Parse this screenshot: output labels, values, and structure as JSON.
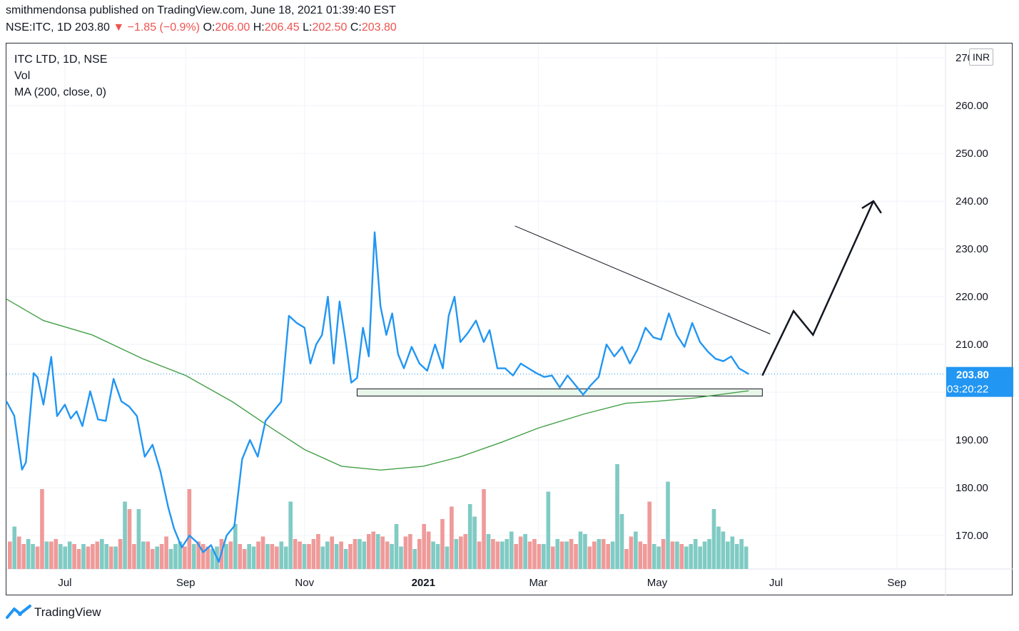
{
  "header": {
    "published_line": "smithmendonsa published on TradingView.com, June 18, 2021 01:39:40 EST",
    "symbol": "NSE:ITC, 1D",
    "last": "203.80",
    "change_arrow": "▼",
    "change": "−1.85 (−0.9%)",
    "o_label": "O:",
    "o_value": "206.00",
    "h_label": "H:",
    "h_value": "206.45",
    "l_label": "L:",
    "l_value": "202.50",
    "c_label": "C:",
    "c_value": "203.80"
  },
  "legend": {
    "line1": "ITC LTD, 1D, NSE",
    "line2": "Vol",
    "line3": "MA (200, close, 0)"
  },
  "currency": "INR",
  "last_price_tag": {
    "price": "203.80",
    "countdown": "03:20:22"
  },
  "footer": {
    "brand": "TradingView"
  },
  "colors": {
    "price_line": "#2196f3",
    "ma_line": "#43a047",
    "vol_up": "#80cbc4",
    "vol_down": "#ef9a9a",
    "tag_bg": "#2196f3",
    "zone_fill": "#e8f5e9",
    "trend_line": "#131722",
    "projection": "#131722"
  },
  "chart_data": {
    "type": "line",
    "title": "ITC LTD, 1D, NSE",
    "xlabel": "",
    "ylabel": "",
    "ylim": [
      163,
      273
    ],
    "x_ticks": [
      "Jul",
      "Sep",
      "Nov",
      "2021",
      "Mar",
      "May",
      "Jul",
      "Sep"
    ],
    "x_tick_dates": [
      "2020-07-01",
      "2020-09-01",
      "2020-11-01",
      "2021-01-01",
      "2021-03-01",
      "2021-05-01",
      "2021-07-01",
      "2021-09-01"
    ],
    "y_ticks": [
      "170.00",
      "180.00",
      "190.00",
      "200.00",
      "210.00",
      "220.00",
      "230.00",
      "240.00",
      "250.00",
      "260.00",
      "270.00"
    ],
    "y_tick_values": [
      170,
      180,
      190,
      200,
      210,
      220,
      230,
      240,
      250,
      260,
      270
    ],
    "grid": true,
    "series": [
      {
        "name": "ITC",
        "style": "line",
        "x": [
          "2020-06-01",
          "2020-06-05",
          "2020-06-09",
          "2020-06-11",
          "2020-06-15",
          "2020-06-17",
          "2020-06-20",
          "2020-06-24",
          "2020-06-27",
          "2020-07-01",
          "2020-07-04",
          "2020-07-07",
          "2020-07-10",
          "2020-07-14",
          "2020-07-18",
          "2020-07-22",
          "2020-07-26",
          "2020-07-30",
          "2020-08-03",
          "2020-08-07",
          "2020-08-11",
          "2020-08-15",
          "2020-08-19",
          "2020-08-23",
          "2020-08-26",
          "2020-08-30",
          "2020-09-03",
          "2020-09-07",
          "2020-09-10",
          "2020-09-14",
          "2020-09-18",
          "2020-09-22",
          "2020-09-26",
          "2020-09-30",
          "2020-10-04",
          "2020-10-08",
          "2020-10-12",
          "2020-10-16",
          "2020-10-20",
          "2020-10-24",
          "2020-10-28",
          "2020-11-01",
          "2020-11-04",
          "2020-11-07",
          "2020-11-10",
          "2020-11-13",
          "2020-11-16",
          "2020-11-19",
          "2020-11-22",
          "2020-11-25",
          "2020-11-28",
          "2020-12-01",
          "2020-12-04",
          "2020-12-07",
          "2020-12-10",
          "2020-12-13",
          "2020-12-16",
          "2020-12-19",
          "2020-12-22",
          "2020-12-26",
          "2020-12-30",
          "2021-01-03",
          "2021-01-07",
          "2021-01-11",
          "2021-01-14",
          "2021-01-17",
          "2021-01-20",
          "2021-01-24",
          "2021-01-28",
          "2021-02-01",
          "2021-02-04",
          "2021-02-08",
          "2021-02-12",
          "2021-02-16",
          "2021-02-20",
          "2021-02-24",
          "2021-02-28",
          "2021-03-04",
          "2021-03-08",
          "2021-03-12",
          "2021-03-16",
          "2021-03-20",
          "2021-03-24",
          "2021-03-28",
          "2021-04-01",
          "2021-04-05",
          "2021-04-09",
          "2021-04-13",
          "2021-04-17",
          "2021-04-21",
          "2021-04-25",
          "2021-04-29",
          "2021-05-03",
          "2021-05-07",
          "2021-05-11",
          "2021-05-15",
          "2021-05-19",
          "2021-05-23",
          "2021-05-27",
          "2021-05-31",
          "2021-06-04",
          "2021-06-08",
          "2021-06-12",
          "2021-06-17"
        ],
        "y": [
          198.1,
          195.1,
          183.8,
          185.3,
          204.0,
          203.1,
          197.4,
          207.4,
          195.0,
          197.4,
          194.5,
          196.0,
          192.9,
          200.2,
          194.3,
          194.0,
          202.8,
          198.1,
          197.0,
          195.0,
          186.5,
          189.0,
          183.5,
          176.0,
          171.5,
          167.5,
          170.0,
          168.5,
          166.5,
          168.0,
          164.5,
          170.0,
          172.0,
          186.0,
          190.0,
          186.5,
          194.0,
          196.0,
          198.0,
          216.0,
          214.5,
          213.5,
          206.0,
          210.0,
          212.0,
          220.0,
          206.0,
          219.0,
          211.0,
          202.0,
          203.0,
          213.5,
          207.5,
          233.5,
          218.0,
          212.0,
          216.5,
          208.0,
          205.0,
          209.5,
          206.0,
          204.5,
          210.0,
          205.0,
          216.0,
          220.0,
          210.5,
          212.5,
          215.0,
          210.5,
          213.0,
          205.0,
          205.0,
          203.5,
          206.0,
          205.0,
          204.0,
          203.2,
          203.5,
          201.0,
          203.5,
          201.5,
          199.5,
          201.5,
          203.2,
          210.0,
          207.5,
          209.5,
          206.0,
          209.0,
          213.5,
          211.5,
          211.0,
          216.5,
          212.0,
          209.5,
          214.5,
          210.5,
          208.5,
          207.0,
          206.5,
          207.5,
          205.0,
          203.8
        ]
      },
      {
        "name": "MA (200, close, 0)",
        "style": "line",
        "x": [
          "2020-06-01",
          "2020-06-20",
          "2020-07-15",
          "2020-08-10",
          "2020-09-01",
          "2020-09-25",
          "2020-10-15",
          "2020-11-01",
          "2020-11-20",
          "2020-12-10",
          "2021-01-01",
          "2021-01-20",
          "2021-02-10",
          "2021-03-01",
          "2021-03-25",
          "2021-04-15",
          "2021-05-01",
          "2021-05-20",
          "2021-06-17"
        ],
        "y": [
          219.5,
          215.0,
          212.0,
          207.0,
          203.5,
          198.0,
          192.5,
          188.0,
          184.5,
          183.7,
          184.5,
          186.5,
          189.5,
          192.5,
          195.5,
          197.7,
          198.1,
          198.8,
          200.3
        ]
      }
    ],
    "volume": {
      "name": "Vol",
      "bars_up": [
        0.85,
        0.6,
        0.5,
        0.55,
        0.5,
        0.45,
        0.55,
        0.5,
        0.6,
        0.5,
        0.45,
        1.35,
        1.2,
        0.55,
        0.45,
        0.4,
        0.5,
        0.55,
        0.5,
        0.4,
        0.45,
        0.5,
        0.9,
        0.5,
        0.45,
        0.5,
        0.55,
        0.45,
        1.35,
        0.5,
        0.45,
        0.55,
        0.5,
        0.4,
        0.6,
        0.55,
        0.7,
        0.5,
        0.9,
        0.45,
        0.4,
        0.55,
        0.5,
        0.45,
        0.6,
        1.3,
        1.05,
        0.7,
        0.55,
        0.6,
        0.75,
        0.7,
        0.5,
        1.55,
        0.6,
        0.55,
        0.75,
        0.7,
        0.6,
        0.55,
        2.1,
        1.1,
        0.75,
        0.5,
        0.45,
        1.75,
        0.55,
        0.45,
        0.5,
        0.6,
        0.45,
        0.55,
        0.6,
        1.2,
        0.85,
        0.75,
        0.55,
        0.65,
        0.5,
        0.6,
        0.45
      ],
      "bars_down": [
        0.55,
        0.65,
        0.5,
        0.45,
        1.6,
        0.55,
        0.6,
        0.5,
        0.4,
        0.45,
        0.5,
        0.55,
        0.45,
        0.6,
        1.2,
        0.5,
        0.55,
        0.4,
        0.5,
        0.65,
        0.45,
        1.6,
        0.55,
        0.5,
        0.45,
        0.6,
        0.55,
        0.5,
        0.4,
        0.55,
        0.65,
        0.5,
        0.45,
        0.6,
        0.55,
        0.5,
        0.6,
        0.7,
        0.65,
        0.55,
        0.5,
        0.6,
        0.7,
        0.75,
        0.65,
        0.55,
        0.65,
        0.7,
        0.6,
        0.9,
        0.75,
        1.0,
        1.25,
        0.65,
        0.7,
        0.55,
        1.6,
        0.6,
        0.55,
        0.5,
        0.65,
        0.55,
        0.6,
        0.5,
        0.45,
        0.55,
        0.6,
        0.5,
        0.45,
        0.55,
        0.6,
        0.5,
        0.4,
        0.65,
        0.55,
        0.5,
        1.35,
        0.6,
        0.55,
        0.5
      ]
    },
    "annotations": {
      "trendline": {
        "from": [
          "2021-02-17",
          234.8
        ],
        "to": [
          "2021-06-28",
          212.2
        ]
      },
      "support_zone": {
        "from_date": "2020-11-28",
        "to_date": "2021-06-24",
        "y_low": 199.2,
        "y_high": 200.7
      },
      "projection": {
        "dates": [
          "2021-06-24",
          "2021-07-10",
          "2021-07-20",
          "2021-08-20",
          "2021-08-24"
        ],
        "values": [
          203.5,
          217.0,
          212.0,
          240.0,
          237.5
        ]
      }
    }
  }
}
